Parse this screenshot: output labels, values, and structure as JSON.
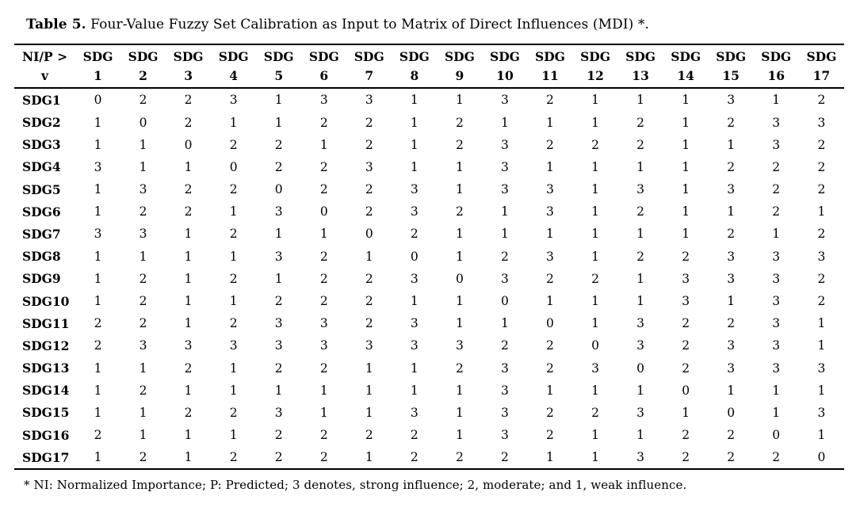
{
  "caption": {
    "label": "Table 5.",
    "text": " Four-Value Fuzzy Set Calibration as Input to Matrix of Direct Influences (MDI) *."
  },
  "table": {
    "corner_header": {
      "line1": "NI/P >",
      "line2": "v"
    },
    "column_header_prefix": "SDG",
    "column_numbers": [
      "1",
      "2",
      "3",
      "4",
      "5",
      "6",
      "7",
      "8",
      "9",
      "10",
      "11",
      "12",
      "13",
      "14",
      "15",
      "16",
      "17"
    ],
    "rows": [
      {
        "label": "SDG1",
        "values": [
          0,
          2,
          2,
          3,
          1,
          3,
          3,
          1,
          1,
          3,
          2,
          1,
          1,
          1,
          3,
          1,
          2
        ]
      },
      {
        "label": "SDG2",
        "values": [
          1,
          0,
          2,
          1,
          1,
          2,
          2,
          1,
          2,
          1,
          1,
          1,
          2,
          1,
          2,
          3,
          3
        ]
      },
      {
        "label": "SDG3",
        "values": [
          1,
          1,
          0,
          2,
          2,
          1,
          2,
          1,
          2,
          3,
          2,
          2,
          2,
          1,
          1,
          3,
          2
        ]
      },
      {
        "label": "SDG4",
        "values": [
          3,
          1,
          1,
          0,
          2,
          2,
          3,
          1,
          1,
          3,
          1,
          1,
          1,
          1,
          2,
          2,
          2
        ]
      },
      {
        "label": "SDG5",
        "values": [
          1,
          3,
          2,
          2,
          0,
          2,
          2,
          3,
          1,
          3,
          3,
          1,
          3,
          1,
          3,
          2,
          2
        ]
      },
      {
        "label": "SDG6",
        "values": [
          1,
          2,
          2,
          1,
          3,
          0,
          2,
          3,
          2,
          1,
          3,
          1,
          2,
          1,
          1,
          2,
          1
        ]
      },
      {
        "label": "SDG7",
        "values": [
          3,
          3,
          1,
          2,
          1,
          1,
          0,
          2,
          1,
          1,
          1,
          1,
          1,
          1,
          2,
          1,
          2
        ]
      },
      {
        "label": "SDG8",
        "values": [
          1,
          1,
          1,
          1,
          3,
          2,
          1,
          0,
          1,
          2,
          3,
          1,
          2,
          2,
          3,
          3,
          3
        ]
      },
      {
        "label": "SDG9",
        "values": [
          1,
          2,
          1,
          2,
          1,
          2,
          2,
          3,
          0,
          3,
          2,
          2,
          1,
          3,
          3,
          3,
          2
        ]
      },
      {
        "label": "SDG10",
        "values": [
          1,
          2,
          1,
          1,
          2,
          2,
          2,
          1,
          1,
          0,
          1,
          1,
          1,
          3,
          1,
          3,
          2
        ]
      },
      {
        "label": "SDG11",
        "values": [
          2,
          2,
          1,
          2,
          3,
          3,
          2,
          3,
          1,
          1,
          0,
          1,
          3,
          2,
          2,
          3,
          1
        ]
      },
      {
        "label": "SDG12",
        "values": [
          2,
          3,
          3,
          3,
          3,
          3,
          3,
          3,
          3,
          2,
          2,
          0,
          3,
          2,
          3,
          3,
          1
        ]
      },
      {
        "label": "SDG13",
        "values": [
          1,
          1,
          2,
          1,
          2,
          2,
          1,
          1,
          2,
          3,
          2,
          3,
          0,
          2,
          3,
          3,
          3
        ]
      },
      {
        "label": "SDG14",
        "values": [
          1,
          2,
          1,
          1,
          1,
          1,
          1,
          1,
          1,
          3,
          1,
          1,
          1,
          0,
          1,
          1,
          1
        ]
      },
      {
        "label": "SDG15",
        "values": [
          1,
          1,
          2,
          2,
          3,
          1,
          1,
          3,
          1,
          3,
          2,
          2,
          3,
          1,
          0,
          1,
          3
        ]
      },
      {
        "label": "SDG16",
        "values": [
          2,
          1,
          1,
          1,
          2,
          2,
          2,
          2,
          1,
          3,
          2,
          1,
          1,
          2,
          2,
          0,
          1
        ]
      },
      {
        "label": "SDG17",
        "values": [
          1,
          2,
          1,
          2,
          2,
          2,
          1,
          2,
          2,
          2,
          1,
          1,
          3,
          2,
          2,
          2,
          0
        ]
      }
    ]
  },
  "footnote": "* NI: Normalized Importance; P: Predicted; 3 denotes, strong influence; 2, moderate; and 1, weak influence."
}
